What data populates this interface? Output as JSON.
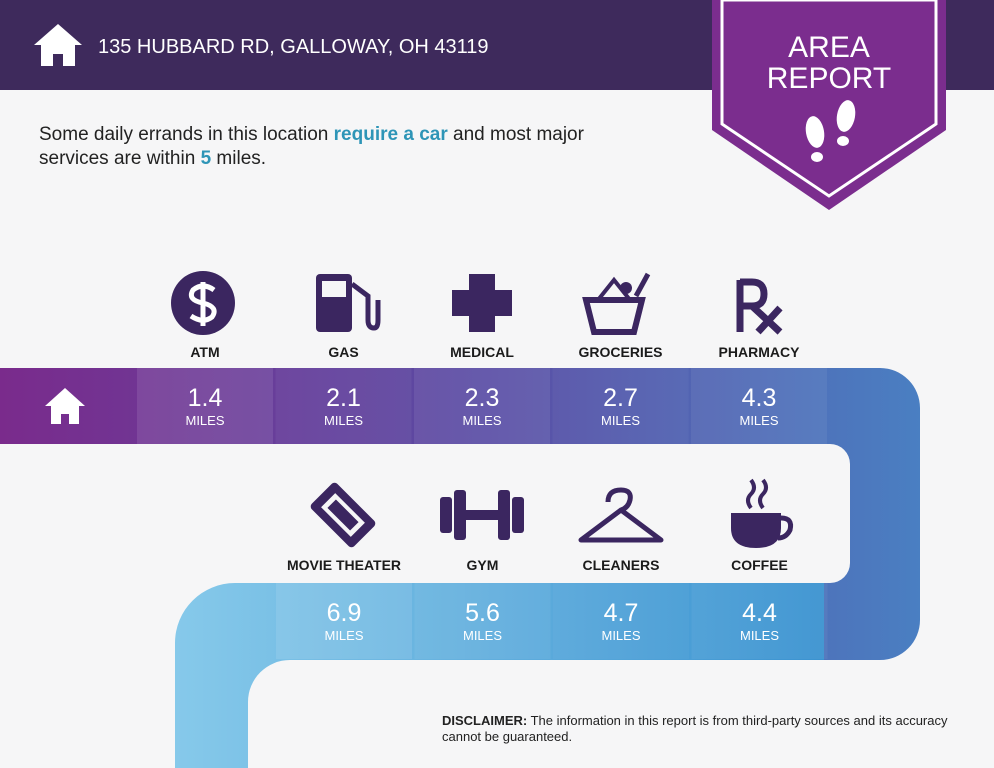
{
  "header": {
    "address": "135 HUBBARD RD, GALLOWAY, OH 43119"
  },
  "badge": {
    "line1": "AREA",
    "line2": "REPORT"
  },
  "summary": {
    "segments": [
      "Some daily errands in this location ",
      "require a car",
      " and most major",
      "services are within ",
      "5",
      " miles."
    ]
  },
  "unit": "MILES",
  "services": {
    "row1": [
      {
        "name": "ATM",
        "distance": "1.4"
      },
      {
        "name": "GAS",
        "distance": "2.1"
      },
      {
        "name": "MEDICAL",
        "distance": "2.3"
      },
      {
        "name": "GROCERIES",
        "distance": "2.7"
      },
      {
        "name": "PHARMACY",
        "distance": "4.3"
      }
    ],
    "row2": [
      {
        "name": "MOVIE THEATER",
        "distance": "6.9"
      },
      {
        "name": "GYM",
        "distance": "5.6"
      },
      {
        "name": "CLEANERS",
        "distance": "4.7"
      },
      {
        "name": "COFFEE",
        "distance": "4.4"
      }
    ]
  },
  "disclaimer": {
    "label": "DISCLAIMER:",
    "text": " The information in this report is from third-party sources and its accuracy cannot be guaranteed."
  }
}
